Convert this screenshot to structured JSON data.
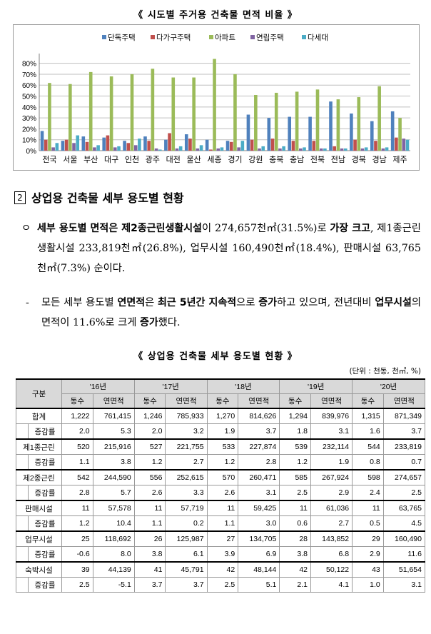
{
  "chart": {
    "title": "《 시도별 주거용 건축물 면적 비율 》"
  },
  "chart_data": {
    "type": "bar",
    "title": "《 시도별 주거용 건축물 면적 비율 》",
    "categories": [
      "전국",
      "서울",
      "부산",
      "대구",
      "인천",
      "광주",
      "대전",
      "울산",
      "세종",
      "경기",
      "강원",
      "충북",
      "충남",
      "전북",
      "전남",
      "경북",
      "경남",
      "제주"
    ],
    "ylim": [
      0,
      85
    ],
    "yticks": [
      "0%",
      "10%",
      "20%",
      "30%",
      "40%",
      "50%",
      "60%",
      "70%",
      "80%"
    ],
    "grid": true,
    "legend_position": "top",
    "series": [
      {
        "name": "단독주택",
        "color": "#4f81bd",
        "values": [
          18,
          9,
          13,
          12,
          9,
          13,
          10,
          15,
          10,
          9,
          33,
          30,
          31,
          31,
          45,
          34,
          27,
          36
        ]
      },
      {
        "name": "다가구주택",
        "color": "#c0504d",
        "values": [
          10,
          10,
          8,
          14,
          7,
          9,
          16,
          11,
          1,
          8,
          10,
          11,
          9,
          9,
          4,
          10,
          9,
          12
        ]
      },
      {
        "name": "아파트",
        "color": "#9bbb59",
        "values": [
          62,
          61,
          72,
          68,
          70,
          75,
          67,
          67,
          84,
          70,
          51,
          53,
          54,
          56,
          47,
          49,
          59,
          30
        ]
      },
      {
        "name": "연립주택",
        "color": "#8064a2",
        "values": [
          3,
          7,
          3,
          3,
          5,
          2,
          2,
          2,
          2,
          3,
          2,
          2,
          2,
          2,
          2,
          2,
          2,
          11
        ]
      },
      {
        "name": "다세대",
        "color": "#4bacc6",
        "values": [
          7,
          14,
          5,
          4,
          11,
          1,
          4,
          5,
          3,
          9,
          4,
          4,
          3,
          2,
          2,
          3,
          3,
          10
        ]
      }
    ]
  },
  "section": {
    "number": "2",
    "heading": "상업용 건축물 세부 용도별 현황"
  },
  "para1": {
    "bullet": "ㅇ",
    "s1": "세부 용도별 면적",
    "s2": "은 ",
    "s3": "제2종근린생활시설",
    "s4": "이 274,657천㎡(31.5%)로 ",
    "s5": "가장 크고",
    "s6": ", 제1종근린생활시설 233,819천㎡(26.8%), 업무시설 160,490천㎡(18.4%), 판매시설 63,765천㎡(7.3%) 순이다."
  },
  "para2": {
    "bullet": "-",
    "s1": "모든 세부 용도별 ",
    "s2": "연면적",
    "s3": "은 ",
    "s4": "최근 5년간 지속적",
    "s5": "으로 ",
    "s6": "증가",
    "s7": "하고 있으며, 전년대비 ",
    "s8": "업무시설",
    "s9": "의 면적이 11.6%로 크게 ",
    "s10": "증가",
    "s11": "했다."
  },
  "table": {
    "title": "《 상업용 건축물 세부 용도별 현황 》",
    "unit": "(단위 : 천동, 천㎡, %)",
    "corner": "구분",
    "years": [
      "'16년",
      "'17년",
      "'18년",
      "'19년",
      "'20년"
    ],
    "subheads": [
      "동수",
      "연면적"
    ],
    "groups": [
      {
        "name": "합계",
        "main": [
          "1,222",
          "761,415",
          "1,246",
          "785,933",
          "1,270",
          "814,626",
          "1,294",
          "839,976",
          "1,315",
          "871,349"
        ],
        "sub_label": "증감률",
        "sub": [
          "2.0",
          "5.3",
          "2.0",
          "3.2",
          "1.9",
          "3.7",
          "1.8",
          "3.1",
          "1.6",
          "3.7"
        ]
      },
      {
        "name": "제1종근린",
        "main": [
          "520",
          "215,916",
          "527",
          "221,755",
          "533",
          "227,874",
          "539",
          "232,114",
          "544",
          "233,819"
        ],
        "sub_label": "증감률",
        "sub": [
          "1.1",
          "3.8",
          "1.2",
          "2.7",
          "1.2",
          "2.8",
          "1.2",
          "1.9",
          "0.8",
          "0.7"
        ]
      },
      {
        "name": "제2종근린",
        "main": [
          "542",
          "244,590",
          "556",
          "252,615",
          "570",
          "260,471",
          "585",
          "267,924",
          "598",
          "274,657"
        ],
        "sub_label": "증감률",
        "sub": [
          "2.8",
          "5.7",
          "2.6",
          "3.3",
          "2.6",
          "3.1",
          "2.5",
          "2.9",
          "2.4",
          "2.5"
        ]
      },
      {
        "name": "판매시설",
        "main": [
          "11",
          "57,578",
          "11",
          "57,719",
          "11",
          "59,425",
          "11",
          "61,036",
          "11",
          "63,765"
        ],
        "sub_label": "증감률",
        "sub": [
          "1.2",
          "10.4",
          "1.1",
          "0.2",
          "1.1",
          "3.0",
          "0.6",
          "2.7",
          "0.5",
          "4.5"
        ]
      },
      {
        "name": "업무시설",
        "main": [
          "25",
          "118,692",
          "26",
          "125,987",
          "27",
          "134,705",
          "28",
          "143,852",
          "29",
          "160,490"
        ],
        "sub_label": "증감률",
        "sub": [
          "-0.6",
          "8.0",
          "3.8",
          "6.1",
          "3.9",
          "6.9",
          "3.8",
          "6.8",
          "2.9",
          "11.6"
        ]
      },
      {
        "name": "숙박시설",
        "main": [
          "39",
          "44,139",
          "41",
          "45,791",
          "42",
          "48,144",
          "42",
          "50,122",
          "43",
          "51,654"
        ],
        "sub_label": "증감률",
        "sub": [
          "2.5",
          "-5.1",
          "3.7",
          "3.7",
          "2.5",
          "5.1",
          "2.1",
          "4.1",
          "1.0",
          "3.1"
        ]
      }
    ]
  }
}
